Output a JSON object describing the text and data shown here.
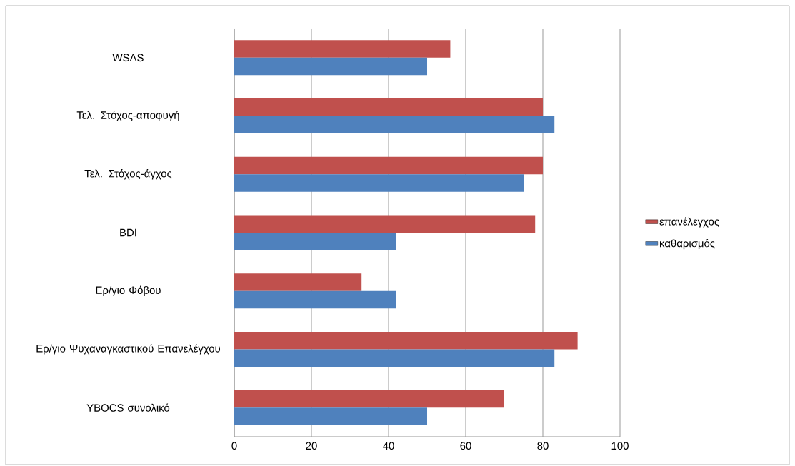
{
  "chart_data": {
    "type": "bar",
    "orientation": "horizontal",
    "categories": [
      "WSAS",
      "Τελ. Στόχος-αποφυγή",
      "Τελ. Στόχος-άγχος",
      "BDI",
      "Ερ/γιο Φόβου",
      "Ερ/γιο Ψυχαναγκαστικού Επανελέγχου",
      "YBOCS συνολικό"
    ],
    "series": [
      {
        "name": "επανέλεγχος",
        "color": "#c0504d",
        "values": [
          56,
          80,
          80,
          78,
          33,
          89,
          70
        ]
      },
      {
        "name": "καθαρισμός",
        "color": "#4f81bd",
        "values": [
          50,
          83,
          75,
          42,
          42,
          83,
          50
        ]
      }
    ],
    "xlim": [
      0,
      100
    ],
    "xticks": [
      0,
      20,
      40,
      60,
      80,
      100
    ],
    "grid": "x",
    "legend": "right"
  }
}
